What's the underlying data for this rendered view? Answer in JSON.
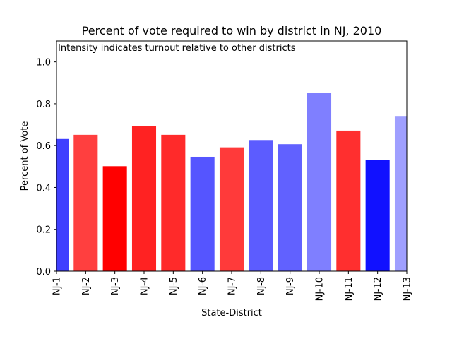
{
  "chart_data": {
    "type": "bar",
    "title": "Percent of vote required to win by district in NJ, 2010",
    "subtitle": "Intensity indicates turnout relative to other districts",
    "xlabel": "State-District",
    "ylabel": "Percent of Vote",
    "ylim": [
      0,
      1.1
    ],
    "yticks": [
      0.0,
      0.2,
      0.4,
      0.6,
      0.8,
      1.0
    ],
    "ytick_labels": [
      "0.0",
      "0.2",
      "0.4",
      "0.6",
      "0.8",
      "1.0"
    ],
    "grid": false,
    "categories": [
      "NJ-1",
      "NJ-2",
      "NJ-3",
      "NJ-4",
      "NJ-5",
      "NJ-6",
      "NJ-7",
      "NJ-8",
      "NJ-9",
      "NJ-10",
      "NJ-11",
      "NJ-12",
      "NJ-13"
    ],
    "values": [
      0.63,
      0.65,
      0.5,
      0.69,
      0.65,
      0.545,
      0.59,
      0.625,
      0.605,
      0.85,
      0.67,
      0.53,
      0.74
    ],
    "colors": [
      "#3f3fff",
      "#ff3f3f",
      "#ff0000",
      "#ff2222",
      "#ff2a2a",
      "#5555ff",
      "#ff3a3a",
      "#5c5cff",
      "#6161ff",
      "#7f7fff",
      "#ff2f2f",
      "#1111ff",
      "#9f9fff"
    ]
  }
}
